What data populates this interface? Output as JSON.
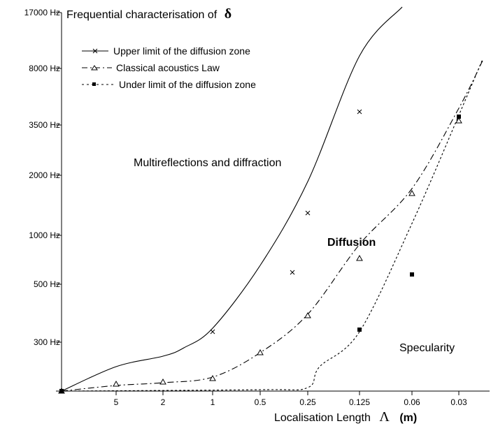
{
  "chart_data": {
    "type": "line",
    "title": "Frequential characterisation of",
    "title_symbol": "δ",
    "xlabel": "Localisation Length",
    "xlabel_symbol": "Λ",
    "xlabel_unit": "(m)",
    "x_ticks": [
      "5",
      "2",
      "1",
      "0.5",
      "0.25",
      "0.125",
      "0.06",
      "0.03"
    ],
    "y_ticks": [
      "17000 Hz",
      "8000 Hz",
      "3500 Hz",
      "2000 Hz",
      "1000 Hz",
      "500 Hz",
      "300 Hz"
    ],
    "legend_position": "top-left",
    "grid": false,
    "series": [
      {
        "name": "Upper limit of the diffusion zone",
        "style": "solid",
        "marker": "x",
        "curve_points": [
          [
            "origin",
            0
          ],
          [
            "5",
            35
          ],
          [
            "2",
            50
          ],
          [
            "1.4",
            62
          ],
          [
            "1",
            90
          ],
          [
            "0.5",
            180
          ],
          [
            "0.25",
            300
          ],
          [
            "0.125",
            480
          ],
          [
            "0.1",
            550
          ]
        ],
        "markers": [
          [
            "origin",
            0
          ],
          [
            "1",
            85
          ],
          [
            "0.35",
            170
          ],
          [
            "0.25",
            255
          ],
          [
            "0.125",
            400
          ]
        ]
      },
      {
        "name": "Classical acoustics Law",
        "style": "dash-dot",
        "marker": "triangle",
        "curve_points": [
          [
            "origin",
            0
          ],
          [
            "5",
            8
          ],
          [
            "2",
            12
          ],
          [
            "1",
            20
          ],
          [
            "0.5",
            55
          ],
          [
            "0.25",
            110
          ],
          [
            "0.125",
            210
          ],
          [
            "0.06",
            290
          ],
          [
            "0.03",
            405
          ],
          [
            "0.02",
            473
          ]
        ],
        "markers": [
          [
            "origin",
            0
          ],
          [
            "5",
            10
          ],
          [
            "2",
            13
          ],
          [
            "1",
            18
          ],
          [
            "0.5",
            55
          ],
          [
            "0.25",
            108
          ],
          [
            "0.125",
            190
          ],
          [
            "0.06",
            283
          ],
          [
            "0.03",
            387
          ]
        ]
      },
      {
        "name": "Under limit of the diffusion zone",
        "style": "dotted",
        "marker": "square",
        "curve_points": [
          [
            "origin",
            0
          ],
          [
            "0.5",
            2
          ],
          [
            "0.25",
            5
          ],
          [
            "0.2",
            35
          ],
          [
            "0.125",
            85
          ],
          [
            "0.06",
            240
          ],
          [
            "0.03",
            395
          ],
          [
            "0.02",
            475
          ]
        ],
        "markers": [
          [
            "origin",
            0
          ],
          [
            "0.125",
            88
          ],
          [
            "0.06",
            167
          ],
          [
            "0.03",
            393
          ]
        ]
      }
    ],
    "annotations": [
      {
        "text": "Multireflections and diffraction",
        "bold": false
      },
      {
        "text": "Diffusion",
        "bold": true
      },
      {
        "text": "Specularity",
        "bold": false
      }
    ]
  }
}
